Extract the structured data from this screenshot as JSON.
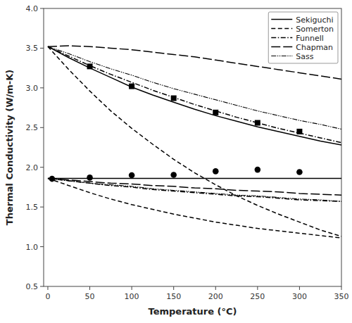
{
  "chart_data": {
    "type": "line",
    "x_label": "Temperature (°C)",
    "y_label": "Thermal Conductivity (W/m-K)",
    "xlim": [
      -5,
      350
    ],
    "ylim": [
      0.5,
      4.0
    ],
    "xticks": [
      0,
      50,
      100,
      150,
      200,
      250,
      300,
      350
    ],
    "yticks": [
      0.5,
      {
        "value": 1.0,
        "label": "1.0"
      },
      1.5,
      {
        "value": 2.0,
        "label": "2.0"
      },
      2.5,
      {
        "value": 3.0,
        "label": "3.0"
      },
      3.5,
      {
        "value": 4.0,
        "label": "4.0"
      }
    ],
    "grid": false,
    "legend": "upper right",
    "color": "#000000",
    "x": [
      0,
      25,
      50,
      75,
      100,
      125,
      150,
      175,
      200,
      225,
      250,
      275,
      300,
      325,
      350
    ],
    "series": [
      {
        "name": "Sekiguchi",
        "line_style": "solid",
        "values": [
          3.52,
          3.38,
          3.25,
          3.13,
          3.01,
          2.91,
          2.82,
          2.73,
          2.65,
          2.58,
          2.51,
          2.45,
          2.39,
          2.33,
          2.28
        ]
      },
      {
        "line_style": "solid",
        "values": [
          1.86,
          1.86,
          1.86,
          1.86,
          1.86,
          1.86,
          1.86,
          1.86,
          1.86,
          1.86,
          1.86,
          1.86,
          1.86,
          1.86,
          1.86
        ]
      },
      {
        "name": "Somerton",
        "line_style": "dashed",
        "values": [
          3.52,
          3.23,
          2.96,
          2.71,
          2.49,
          2.29,
          2.1,
          1.93,
          1.78,
          1.64,
          1.52,
          1.41,
          1.31,
          1.21,
          1.13
        ]
      },
      {
        "line_style": "dashed",
        "values": [
          1.86,
          1.77,
          1.68,
          1.6,
          1.53,
          1.47,
          1.41,
          1.36,
          1.31,
          1.27,
          1.23,
          1.2,
          1.17,
          1.14,
          1.11
        ]
      },
      {
        "name": "Funnell",
        "line_style": "dashdot",
        "values": [
          3.52,
          3.4,
          3.28,
          3.17,
          3.07,
          2.97,
          2.88,
          2.79,
          2.71,
          2.63,
          2.56,
          2.49,
          2.43,
          2.37,
          2.31
        ]
      },
      {
        "line_style": "dashdot",
        "values": [
          1.86,
          1.83,
          1.8,
          1.77,
          1.75,
          1.72,
          1.7,
          1.68,
          1.66,
          1.64,
          1.63,
          1.61,
          1.59,
          1.58,
          1.57
        ]
      },
      {
        "name": "Chapman",
        "line_style": "longdash",
        "values": [
          3.52,
          3.53,
          3.52,
          3.5,
          3.48,
          3.45,
          3.42,
          3.39,
          3.35,
          3.31,
          3.27,
          3.23,
          3.19,
          3.15,
          3.11
        ]
      },
      {
        "line_style": "longdash",
        "values": [
          1.86,
          1.84,
          1.82,
          1.8,
          1.79,
          1.77,
          1.76,
          1.74,
          1.73,
          1.71,
          1.7,
          1.69,
          1.67,
          1.66,
          1.65
        ]
      },
      {
        "name": "Sass",
        "line_style": "dashdotdot",
        "values": [
          3.52,
          3.43,
          3.33,
          3.24,
          3.16,
          3.07,
          2.99,
          2.92,
          2.85,
          2.78,
          2.71,
          2.65,
          2.59,
          2.54,
          2.48
        ]
      },
      {
        "line_style": "dashdotdot",
        "values": [
          1.86,
          1.83,
          1.8,
          1.78,
          1.76,
          1.73,
          1.71,
          1.69,
          1.67,
          1.65,
          1.64,
          1.62,
          1.6,
          1.59,
          1.57
        ]
      },
      {
        "type": "scatter",
        "marker": "square",
        "x": [
          50,
          100,
          150,
          200,
          250,
          300
        ],
        "values": [
          3.27,
          3.02,
          2.87,
          2.69,
          2.56,
          2.45
        ]
      },
      {
        "type": "scatter",
        "marker": "circle",
        "x": [
          5,
          50,
          100,
          150,
          200,
          250,
          300
        ],
        "values": [
          1.855,
          1.87,
          1.9,
          1.905,
          1.95,
          1.97,
          1.94
        ]
      }
    ]
  }
}
